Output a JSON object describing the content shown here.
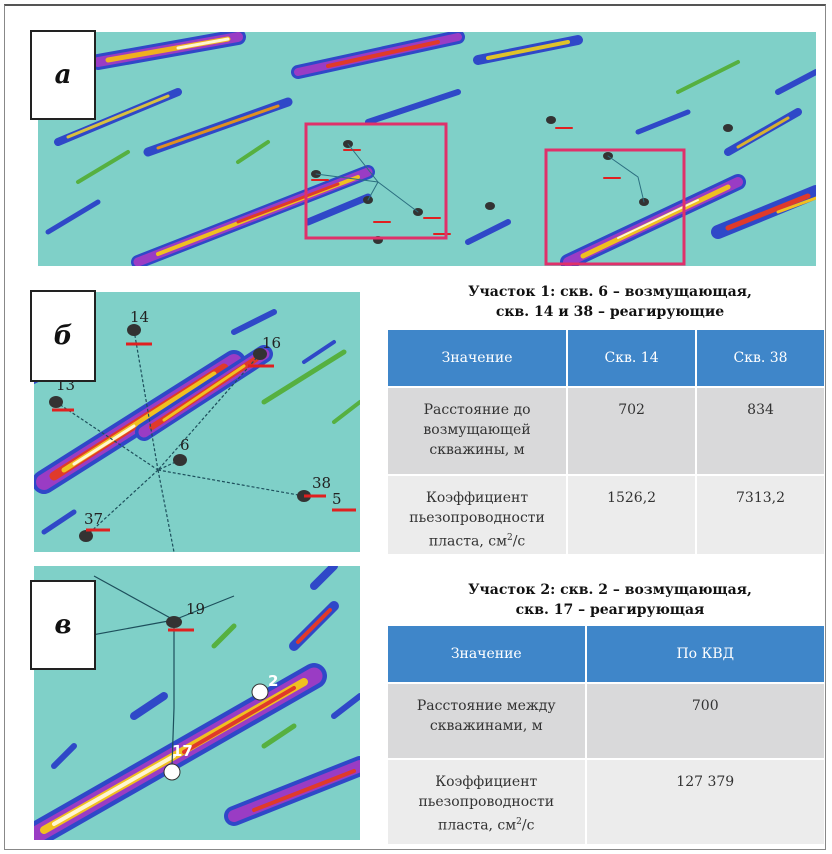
{
  "panels": {
    "a": {
      "label": "а"
    },
    "b": {
      "label": "б",
      "well_labels": [
        "14",
        "16",
        "13",
        "6",
        "38",
        "5",
        "37"
      ]
    },
    "v": {
      "label": "в",
      "well_labels": [
        "19",
        "2",
        "17"
      ]
    }
  },
  "site1": {
    "caption_line1": "Участок 1: скв. 6 – возмущающая,",
    "caption_line2": "скв. 14 и 38 – реагирующие",
    "headers": [
      "Значение",
      "Скв. 14",
      "Скв. 38"
    ],
    "rows": [
      {
        "label": "Расстояние до возмущающей скважины, м",
        "values": [
          "702",
          "834"
        ]
      },
      {
        "label_pre": "Коэффициент пьезопроводности пласта, см",
        "label_sup": "2",
        "label_post": "/с",
        "values": [
          "1526,2",
          "7313,2"
        ]
      }
    ]
  },
  "site2": {
    "caption_line1": "Участок 2: скв. 2 – возмущающая,",
    "caption_line2": "скв. 17 – реагирующая",
    "headers": [
      "Значение",
      "По КВД"
    ],
    "rows": [
      {
        "label": "Расстояние между скважинами, м",
        "value": "700"
      },
      {
        "label_pre": "Коэффициент пьезопроводности пласта, см",
        "label_sup": "2",
        "label_post": "/с",
        "value": "127 379"
      }
    ]
  },
  "colors": {
    "background": "#7fd0c8",
    "table_header": "#3f86c9",
    "highlight_box": "#e0306a"
  }
}
